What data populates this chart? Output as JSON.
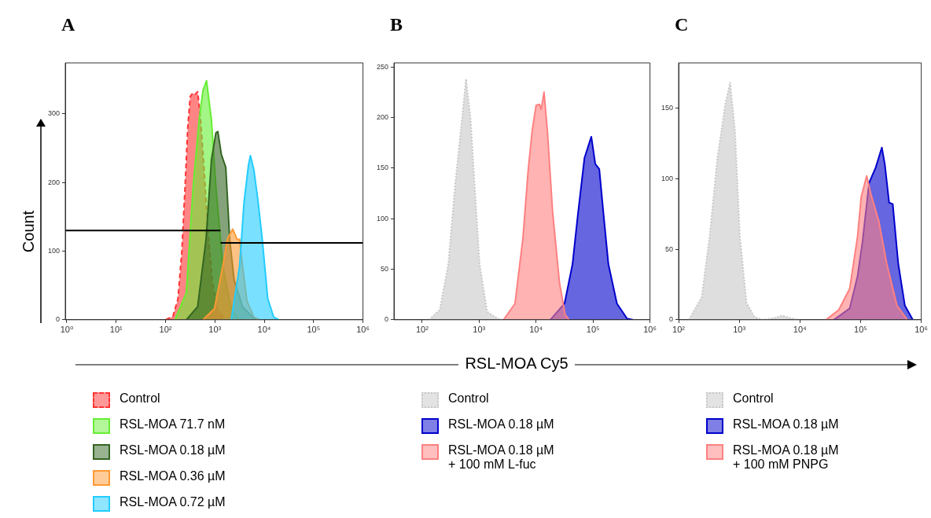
{
  "chart_data": [
    {
      "type": "area",
      "title": "A",
      "ylabel": "Count",
      "log": "x",
      "xlim": [
        0.93,
        1000000
      ],
      "ylim": [
        0,
        374
      ],
      "grid": false,
      "legend": "bottom",
      "marker": "none",
      "xticks": [
        {
          "value": 1,
          "label": "10⁰"
        },
        {
          "value": 10,
          "label": "10¹"
        },
        {
          "value": 100,
          "label": "10²"
        },
        {
          "value": 1000,
          "label": "10³"
        },
        {
          "value": 10000,
          "label": "10⁴"
        },
        {
          "value": 100000,
          "label": "10⁵"
        },
        {
          "value": 1000000,
          "label": "10⁶"
        }
      ],
      "yticks": [
        0,
        100,
        200,
        300
      ],
      "series": [
        {
          "name": "Control",
          "color": "#ff3333",
          "line_style": "dashed",
          "x": [
            100,
            141,
            178,
            214,
            251,
            282,
            316,
            355,
            398,
            447,
            501,
            603,
            724,
            891,
            1122,
            1585
          ],
          "values": [
            0,
            5,
            30,
            100,
            200,
            280,
            325,
            330,
            328,
            332,
            300,
            220,
            130,
            55,
            15,
            0
          ]
        },
        {
          "name": "RSL-MOA 71.7 nM",
          "color": "#66ee33",
          "x": [
            155,
            263,
            363,
            479,
            575,
            676,
            851,
            1047,
            1445,
            2138,
            3162
          ],
          "values": [
            0,
            39,
            194,
            291,
            334,
            348,
            291,
            194,
            78,
            16,
            0
          ]
        },
        {
          "name": "RSL-MOA 0.18 µM",
          "color": "#336622",
          "x": [
            263,
            447,
            661,
            851,
            1047,
            1148,
            1349,
            1660,
            1995,
            2455,
            3631,
            6166,
            7943
          ],
          "values": [
            0,
            19,
            117,
            233,
            272,
            274,
            241,
            222,
            117,
            58,
            19,
            2,
            0
          ]
        },
        {
          "name": "RSL-MOA 0.36 µM",
          "color": "#ff9933",
          "x": [
            575,
            977,
            1445,
            1778,
            2291,
            2818,
            3162,
            3631,
            4467,
            6166,
            7943
          ],
          "values": [
            0,
            16,
            78,
            117,
            132,
            117,
            117,
            78,
            27,
            4,
            0
          ]
        },
        {
          "name": "RSL-MOA 0.72 µM",
          "color": "#22ccff",
          "x": [
            2138,
            3162,
            3890,
            4786,
            5248,
            6166,
            7413,
            9120,
            11749,
            15488,
            19953
          ],
          "values": [
            0,
            78,
            171,
            225,
            239,
            218,
            175,
            117,
            31,
            4,
            0
          ]
        },
        {
          "type": "line",
          "color": "#000000",
          "x": [
            0.93,
            1300
          ],
          "values": [
            130,
            130
          ]
        },
        {
          "type": "line",
          "color": "#000000",
          "x": [
            1300,
            1000000
          ],
          "values": [
            112,
            112
          ]
        }
      ]
    },
    {
      "type": "area",
      "title": "B",
      "xlabel": "RSL-MOA Cy5",
      "log": "x",
      "xlim": [
        32,
        1000000
      ],
      "ylim": [
        0,
        254
      ],
      "grid": false,
      "legend": "bottom",
      "marker": "none",
      "xticks": [
        {
          "value": 100,
          "label": "10²"
        },
        {
          "value": 1000,
          "label": "10³"
        },
        {
          "value": 10000,
          "label": "10⁴"
        },
        {
          "value": 100000,
          "label": "10⁵"
        },
        {
          "value": 1000000,
          "label": "10⁶"
        }
      ],
      "yticks": [
        0,
        50,
        100,
        150,
        200,
        250
      ],
      "series": [
        {
          "name": "Control",
          "color": "#c8c8c8",
          "line_style": "dotted",
          "x": [
            132,
            204,
            288,
            380,
            501,
            589,
            708,
            832,
            1023,
            1380,
            2138,
            2692
          ],
          "values": [
            0,
            10,
            55,
            134,
            199,
            238,
            199,
            134,
            55,
            8,
            1,
            0
          ]
        },
        {
          "name": "RSL-MOA 0.18 µM",
          "color": "#0000cc",
          "x": [
            17783,
            31623,
            43652,
            53703,
            70795,
            93325,
            109648,
            128825,
            151356,
            186209,
            263027,
            398107,
            501187
          ],
          "values": [
            0,
            16,
            55,
            102,
            160,
            181,
            154,
            149,
            107,
            55,
            16,
            1,
            0
          ]
        },
        {
          "name": "RSL-MOA 0.18 µM\n+ 100 mM L-fuc",
          "color": "#ff8080",
          "x": [
            2692,
            4266,
            5888,
            7244,
            8511,
            10000,
            11482,
            12303,
            13804,
            15849,
            19498,
            25704,
            32359,
            38019
          ],
          "values": [
            0,
            16,
            81,
            147,
            186,
            212,
            213,
            208,
            225,
            186,
            107,
            37,
            5,
            0
          ]
        }
      ]
    },
    {
      "type": "area",
      "title": "C",
      "log": "x",
      "xlim": [
        100,
        1000000
      ],
      "ylim": [
        0,
        182
      ],
      "grid": false,
      "legend": "bottom",
      "marker": "none",
      "xticks": [
        {
          "value": 100,
          "label": "10²"
        },
        {
          "value": 1000,
          "label": "10³"
        },
        {
          "value": 10000,
          "label": "10⁴"
        },
        {
          "value": 100000,
          "label": "10⁵"
        },
        {
          "value": 1000000,
          "label": "10⁶"
        }
      ],
      "yticks": [
        0,
        50,
        100,
        150
      ],
      "series": [
        {
          "name": "Control",
          "color": "#c8c8c8",
          "line_style": "dotted",
          "x": [
            148,
            240,
            324,
            437,
            589,
            708,
            851,
            1023,
            1318,
            1778,
            2399,
            3631,
            5129,
            7244,
            9772
          ],
          "values": [
            0,
            16,
            59,
            115,
            153,
            168,
            134,
            59,
            12,
            2,
            0,
            1,
            3,
            1,
            0
          ]
        },
        {
          "name": "RSL-MOA 0.18 µM",
          "color": "#0000cc",
          "x": [
            36308,
            66069,
            89125,
            107152,
            138038,
            177828,
            223872,
            251189,
            295121,
            338844,
            416869,
            537032,
            724436
          ],
          "values": [
            0,
            8,
            31,
            55,
            97,
            108,
            122,
            110,
            83,
            82,
            40,
            10,
            0
          ]
        },
        {
          "name": "RSL-MOA 0.18 µM\n+ 100 mM PNPG",
          "color": "#ff8080",
          "x": [
            26915,
            43652,
            66069,
            89125,
            102329,
            125893,
            147911,
            199526,
            269153,
            398107,
            588844
          ],
          "values": [
            0,
            7,
            22,
            59,
            87,
            102,
            89,
            70,
            40,
            10,
            0
          ]
        }
      ]
    }
  ]
}
